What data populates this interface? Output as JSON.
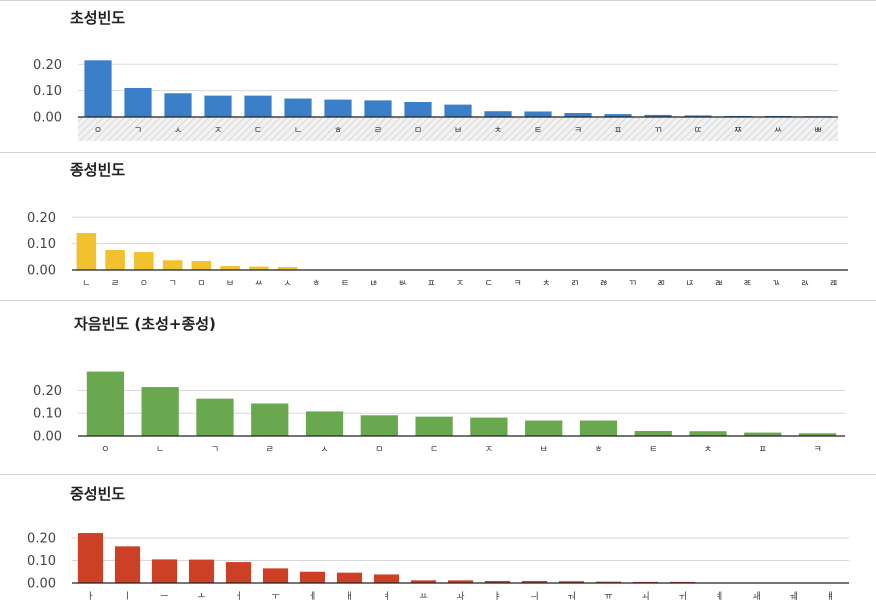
{
  "chart_data": [
    {
      "type": "bar",
      "title": "초성빈도",
      "color": "#3a7fc8",
      "ylim": [
        0,
        0.22
      ],
      "yticks": [
        "0.00",
        "0.10",
        "0.20"
      ],
      "categories": [
        "ㅇ",
        "ㄱ",
        "ㅅ",
        "ㅈ",
        "ㄷ",
        "ㄴ",
        "ㅎ",
        "ㄹ",
        "ㅁ",
        "ㅂ",
        "ㅊ",
        "ㅌ",
        "ㅋ",
        "ㅍ",
        "ㄲ",
        "ㄸ",
        "ㅉ",
        "ㅆ",
        "ㅃ"
      ],
      "values": [
        0.215,
        0.11,
        0.09,
        0.081,
        0.081,
        0.07,
        0.066,
        0.063,
        0.057,
        0.047,
        0.022,
        0.021,
        0.015,
        0.011,
        0.008,
        0.006,
        0.004,
        0.004,
        0.003
      ],
      "grid": true
    },
    {
      "type": "bar",
      "title": "종성빈도",
      "color": "#f2c12e",
      "ylim": [
        0,
        0.22
      ],
      "yticks": [
        "0.00",
        "0.10",
        "0.20"
      ],
      "categories": [
        "ㄴ",
        "ㄹ",
        "ㅇ",
        "ㄱ",
        "ㅁ",
        "ㅂ",
        "ㅆ",
        "ㅅ",
        "ㅎ",
        "ㅌ",
        "ㄶ",
        "ㅄ",
        "ㅍ",
        "ㅈ",
        "ㄷ",
        "ㅋ",
        "ㅊ",
        "ㄺ",
        "ㅀ",
        "ㄲ",
        "ㄻ",
        "ㄵ",
        "ㄼ",
        "ㄾ",
        "ㄳ",
        "ㄽ",
        "ㄿ"
      ],
      "values": [
        0.14,
        0.076,
        0.068,
        0.037,
        0.034,
        0.015,
        0.013,
        0.011,
        0.002,
        0.001,
        0.001,
        0.001,
        0.001,
        0.001,
        0.001,
        0.001,
        0.001,
        0.001,
        0.001,
        0.001,
        0.001,
        0.001,
        0.001,
        0.001,
        0.001,
        0.001,
        0.001
      ],
      "grid": true
    },
    {
      "type": "bar",
      "title": "자음빈도 (초성+종성)",
      "color": "#6aa84f",
      "ylim": [
        0,
        0.29
      ],
      "yticks": [
        "0.00",
        "0.10",
        "0.20"
      ],
      "categories": [
        "ㅇ",
        "ㄴ",
        "ㄱ",
        "ㄹ",
        "ㅅ",
        "ㅁ",
        "ㄷ",
        "ㅈ",
        "ㅂ",
        "ㅎ",
        "ㅌ",
        "ㅊ",
        "ㅍ",
        "ㅋ"
      ],
      "values": [
        0.283,
        0.215,
        0.164,
        0.143,
        0.108,
        0.091,
        0.085,
        0.081,
        0.068,
        0.068,
        0.022,
        0.021,
        0.015,
        0.012
      ],
      "grid": true
    },
    {
      "type": "bar",
      "title": "중성빈도",
      "color": "#cc4125",
      "ylim": [
        0,
        0.24
      ],
      "yticks": [
        "0.00",
        "0.10",
        "0.20"
      ],
      "categories": [
        "ㅏ",
        "ㅣ",
        "ㅡ",
        "ㅗ",
        "ㅓ",
        "ㅜ",
        "ㅔ",
        "ㅐ",
        "ㅕ",
        "ㅛ",
        "ㅘ",
        "ㅑ",
        "ㅢ",
        "ㅝ",
        "ㅠ",
        "ㅚ",
        "ㅟ",
        "ㅖ",
        "ㅙ",
        "ㅞ",
        "ㅒ"
      ],
      "values": [
        0.222,
        0.163,
        0.105,
        0.104,
        0.093,
        0.065,
        0.05,
        0.046,
        0.038,
        0.012,
        0.012,
        0.009,
        0.009,
        0.008,
        0.006,
        0.005,
        0.005,
        0.002,
        0.001,
        0.001,
        0.001
      ],
      "grid": true
    }
  ]
}
